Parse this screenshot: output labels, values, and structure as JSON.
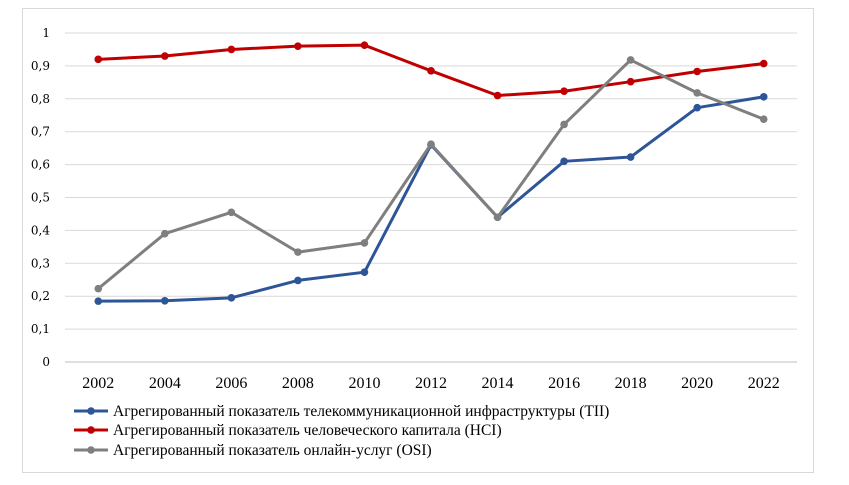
{
  "chart_data": {
    "type": "line",
    "title": "",
    "xlabel": "",
    "ylabel": "",
    "x": [
      "2002",
      "2004",
      "2006",
      "2008",
      "2010",
      "2012",
      "2014",
      "2016",
      "2018",
      "2020",
      "2022"
    ],
    "ylim": [
      0,
      1
    ],
    "yticks": [
      "0",
      "0,1",
      "0,2",
      "0,3",
      "0,4",
      "0,5",
      "0,6",
      "0,7",
      "0,8",
      "0,9",
      "1"
    ],
    "grid": true,
    "legend": "bottom",
    "series": [
      {
        "name": "Агрегированный показатель телекоммуникационной инфраструктуры (TII)",
        "color": "#2e5597",
        "values": [
          0.185,
          0.186,
          0.195,
          0.248,
          0.273,
          0.66,
          0.44,
          0.61,
          0.623,
          0.773,
          0.806
        ]
      },
      {
        "name": "Агрегированный показатель человеческого капитала (HCI)",
        "color": "#c00000",
        "values": [
          0.92,
          0.93,
          0.95,
          0.96,
          0.963,
          0.885,
          0.81,
          0.823,
          0.852,
          0.883,
          0.907
        ]
      },
      {
        "name": "Агрегированный показатель онлайн-услуг (OSI)",
        "color": "#7f7f7f",
        "values": [
          0.223,
          0.39,
          0.455,
          0.334,
          0.362,
          0.662,
          0.44,
          0.722,
          0.918,
          0.818,
          0.738
        ]
      }
    ]
  }
}
